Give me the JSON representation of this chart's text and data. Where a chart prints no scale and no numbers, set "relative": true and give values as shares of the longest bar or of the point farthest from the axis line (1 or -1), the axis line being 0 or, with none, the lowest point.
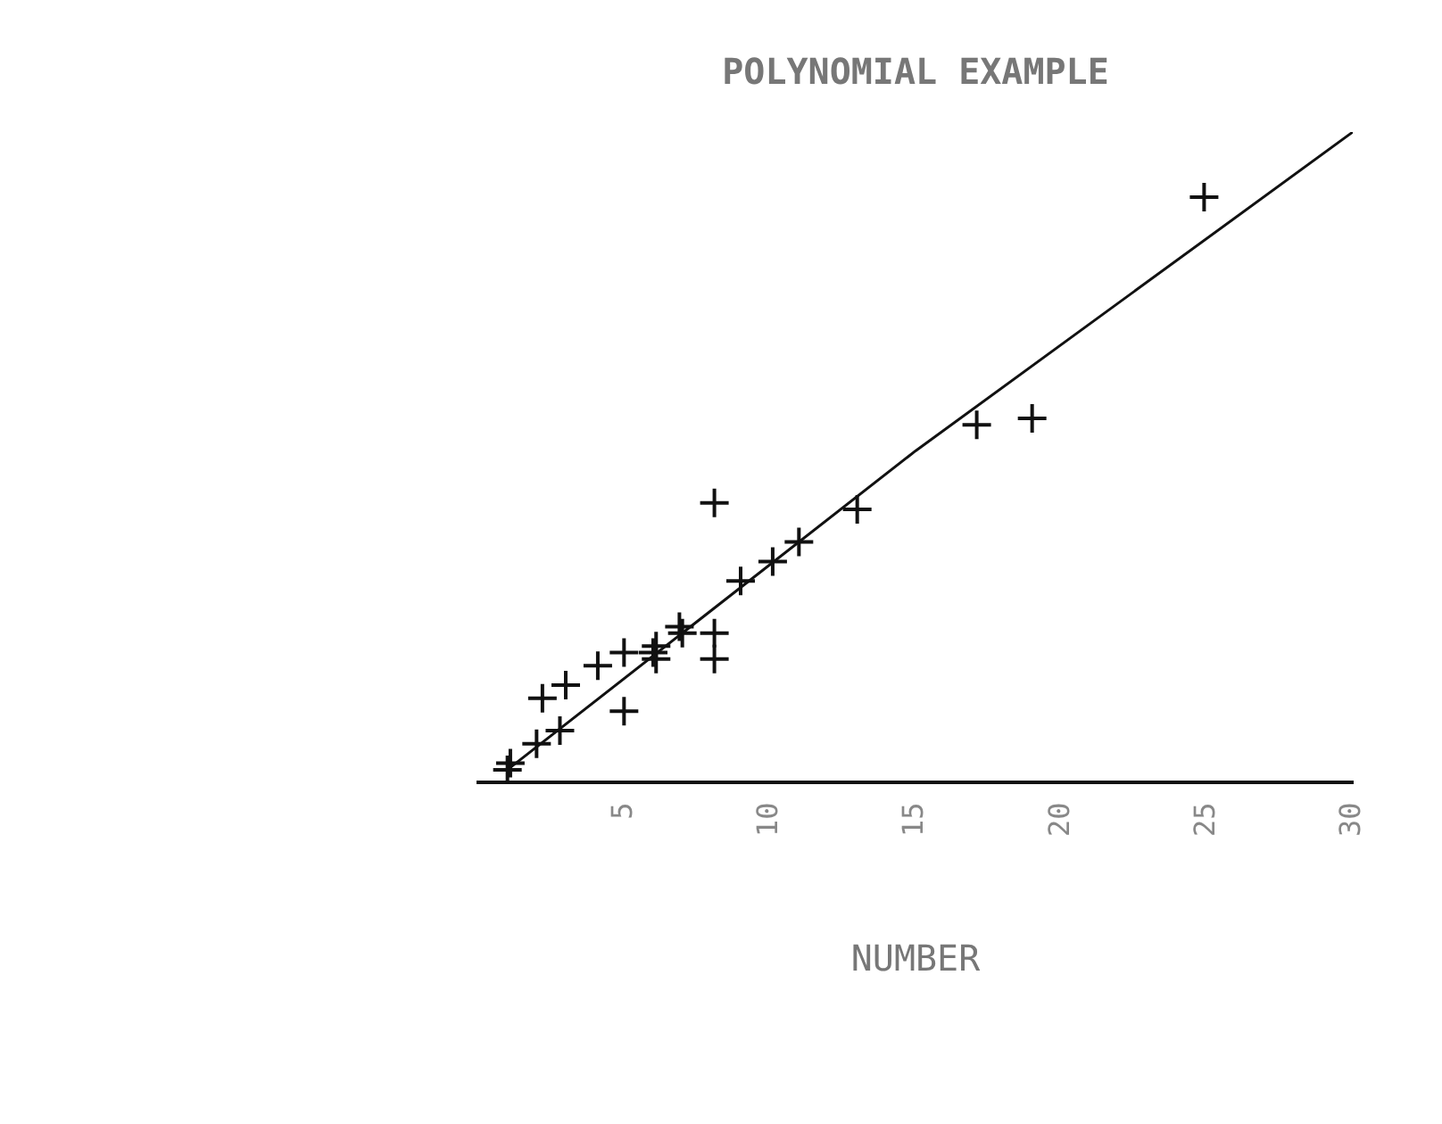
{
  "chart_data": {
    "type": "scatter",
    "title": "POLYNOMIAL EXAMPLE",
    "xlabel": "NUMBER",
    "relative": true,
    "xlim": [
      0,
      30
    ],
    "xticks": [
      5,
      10,
      15,
      20,
      25,
      30
    ],
    "grid": false,
    "legend": false,
    "marker": "cross",
    "series": [
      {
        "type": "scatter",
        "color": "#111111",
        "x": [
          24.9,
          19.0,
          17.1,
          13.0,
          11.0,
          10.1,
          9.0,
          8.1,
          8.1,
          8.1,
          7.0,
          6.9,
          6.1,
          6.1,
          6.0,
          5.0,
          5.0,
          4.1,
          3.0,
          2.2,
          2.8,
          2.0,
          1.1,
          1.0
        ],
        "values": [
          0.9,
          0.56,
          0.55,
          0.42,
          0.37,
          0.34,
          0.31,
          0.43,
          0.23,
          0.19,
          0.23,
          0.24,
          0.21,
          0.19,
          0.2,
          0.2,
          0.11,
          0.18,
          0.15,
          0.13,
          0.08,
          0.06,
          0.03,
          0.02
        ]
      },
      {
        "type": "line",
        "color": "#111111",
        "marker": "none",
        "x": [
          1,
          15,
          30
        ],
        "values": [
          0.02,
          0.51,
          1
        ]
      }
    ]
  }
}
